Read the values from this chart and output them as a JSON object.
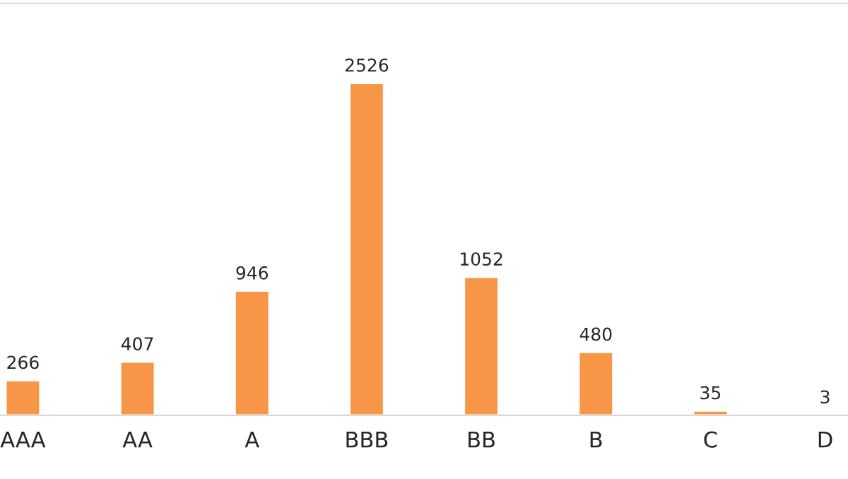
{
  "chart_data": {
    "type": "bar",
    "categories": [
      "AAA",
      "AA",
      "A",
      "BBB",
      "BB",
      "B",
      "C",
      "D"
    ],
    "values": [
      266,
      407,
      946,
      2526,
      1052,
      480,
      35,
      3
    ],
    "color": "#f79646",
    "data_labels": true
  }
}
